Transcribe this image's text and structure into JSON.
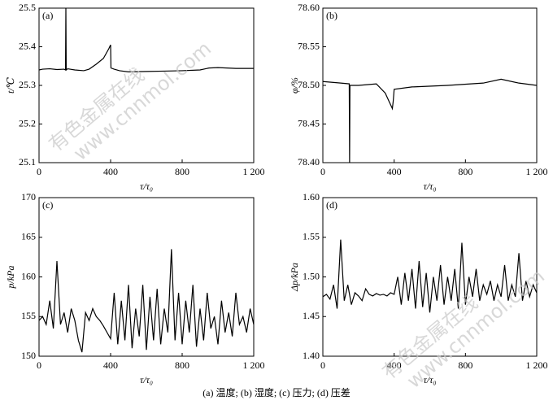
{
  "chart_data": [
    {
      "type": "line",
      "title": "(a)",
      "xlabel": "τ/τ₀",
      "ylabel": "t/℃",
      "xlim": [
        0,
        1200
      ],
      "xticks": [
        0,
        400,
        800,
        {
          "value": 1200,
          "label": "1 200"
        }
      ],
      "ylim": [
        25.1,
        25.5
      ],
      "yticks": [
        25.1,
        25.2,
        25.3,
        25.4,
        25.5
      ],
      "color": "#000000",
      "x": [
        0,
        20,
        60,
        100,
        140,
        148,
        150,
        152,
        160,
        200,
        250,
        280,
        320,
        360,
        390,
        400,
        402,
        420,
        450,
        500,
        600,
        700,
        800,
        900,
        950,
        1000,
        1100,
        1200
      ],
      "values": [
        25.34,
        25.342,
        25.343,
        25.341,
        25.342,
        25.34,
        25.5,
        25.34,
        25.343,
        25.34,
        25.338,
        25.342,
        25.355,
        25.37,
        25.395,
        25.405,
        25.345,
        25.342,
        25.338,
        25.335,
        25.336,
        25.337,
        25.338,
        25.34,
        25.345,
        25.346,
        25.344,
        25.344
      ]
    },
    {
      "type": "line",
      "title": "(b)",
      "xlabel": "τ/τ₀",
      "ylabel": "φ/%",
      "xlim": [
        0,
        1200
      ],
      "xticks": [
        0,
        400,
        800,
        {
          "value": 1200,
          "label": "1 200"
        }
      ],
      "ylim": [
        78.4,
        78.6
      ],
      "yticks": [
        {
          "value": 78.4,
          "label": "78.40"
        },
        {
          "value": 78.45,
          "label": "78.45"
        },
        {
          "value": 78.5,
          "label": "78.50"
        },
        {
          "value": 78.55,
          "label": "78.55"
        },
        {
          "value": 78.6,
          "label": "78.60"
        }
      ],
      "color": "#000000",
      "x": [
        0,
        100,
        148,
        150,
        152,
        200,
        300,
        350,
        380,
        390,
        395,
        400,
        500,
        700,
        900,
        1000,
        1100,
        1200
      ],
      "values": [
        78.505,
        78.503,
        78.502,
        78.4,
        78.5,
        78.5,
        78.502,
        78.49,
        78.475,
        78.47,
        78.48,
        78.495,
        78.498,
        78.5,
        78.503,
        78.508,
        78.503,
        78.5
      ]
    },
    {
      "type": "line",
      "title": "(c)",
      "xlabel": "τ/τ₀",
      "ylabel": "p/kPa",
      "xlim": [
        0,
        1200
      ],
      "xticks": [
        0,
        400,
        800,
        {
          "value": 1200,
          "label": "1 200"
        }
      ],
      "ylim": [
        150,
        170
      ],
      "yticks": [
        150,
        155,
        160,
        165,
        170
      ],
      "color": "#000000",
      "x": [
        0,
        20,
        40,
        60,
        80,
        100,
        120,
        140,
        160,
        180,
        200,
        220,
        240,
        260,
        280,
        300,
        320,
        340,
        360,
        380,
        400,
        420,
        440,
        460,
        480,
        500,
        520,
        540,
        560,
        580,
        600,
        620,
        640,
        660,
        680,
        700,
        720,
        740,
        760,
        780,
        800,
        820,
        840,
        860,
        880,
        900,
        920,
        940,
        960,
        980,
        1000,
        1020,
        1040,
        1060,
        1080,
        1100,
        1120,
        1140,
        1160,
        1180,
        1200
      ],
      "values": [
        154.5,
        155,
        154,
        157,
        153.5,
        162,
        154,
        155.5,
        153,
        156,
        154.5,
        152,
        150.5,
        155.5,
        154.5,
        156,
        155,
        154.5,
        153.8,
        153,
        152.2,
        158,
        151.5,
        157,
        152,
        159,
        151,
        156,
        152.5,
        159,
        150.8,
        157.5,
        152,
        158.5,
        151.5,
        156,
        153,
        163.5,
        152,
        158,
        151.5,
        157,
        153,
        159,
        151.2,
        156,
        152,
        158,
        153.5,
        155,
        151.5,
        157,
        153,
        155.5,
        152.5,
        158,
        154,
        155,
        153,
        156,
        154
      ]
    },
    {
      "type": "line",
      "title": "(d)",
      "xlabel": "τ/τ₀",
      "ylabel": "Δp/kPa",
      "xlim": [
        0,
        1200
      ],
      "xticks": [
        0,
        400,
        800,
        {
          "value": 1200,
          "label": "1 200"
        }
      ],
      "ylim": [
        1.4,
        1.6
      ],
      "yticks": [
        {
          "value": 1.4,
          "label": "1.40"
        },
        {
          "value": 1.45,
          "label": "1.45"
        },
        {
          "value": 1.5,
          "label": "1.50"
        },
        {
          "value": 1.55,
          "label": "1.55"
        },
        {
          "value": 1.6,
          "label": "1.60"
        }
      ],
      "color": "#000000",
      "x": [
        0,
        20,
        40,
        60,
        80,
        100,
        120,
        140,
        160,
        180,
        200,
        220,
        240,
        260,
        280,
        300,
        320,
        340,
        360,
        380,
        400,
        420,
        440,
        460,
        480,
        500,
        520,
        540,
        560,
        580,
        600,
        620,
        640,
        660,
        680,
        700,
        720,
        740,
        760,
        780,
        800,
        820,
        840,
        860,
        880,
        900,
        920,
        940,
        960,
        980,
        1000,
        1020,
        1040,
        1060,
        1080,
        1100,
        1120,
        1140,
        1160,
        1180,
        1200
      ],
      "values": [
        1.475,
        1.478,
        1.472,
        1.49,
        1.46,
        1.547,
        1.47,
        1.49,
        1.465,
        1.48,
        1.476,
        1.47,
        1.485,
        1.478,
        1.476,
        1.479,
        1.477,
        1.478,
        1.476,
        1.48,
        1.478,
        1.5,
        1.465,
        1.505,
        1.47,
        1.51,
        1.46,
        1.52,
        1.462,
        1.505,
        1.455,
        1.5,
        1.47,
        1.515,
        1.465,
        1.5,
        1.47,
        1.51,
        1.46,
        1.543,
        1.465,
        1.5,
        1.475,
        1.51,
        1.47,
        1.49,
        1.478,
        1.495,
        1.47,
        1.49,
        1.475,
        1.515,
        1.47,
        1.49,
        1.475,
        1.53,
        1.47,
        1.495,
        1.475,
        1.49,
        1.48
      ]
    }
  ],
  "caption": "(a) 温度; (b) 湿度; (c) 压力; (d) 压差",
  "watermark": [
    "有色金属在线",
    "www.cnnmol.com"
  ]
}
